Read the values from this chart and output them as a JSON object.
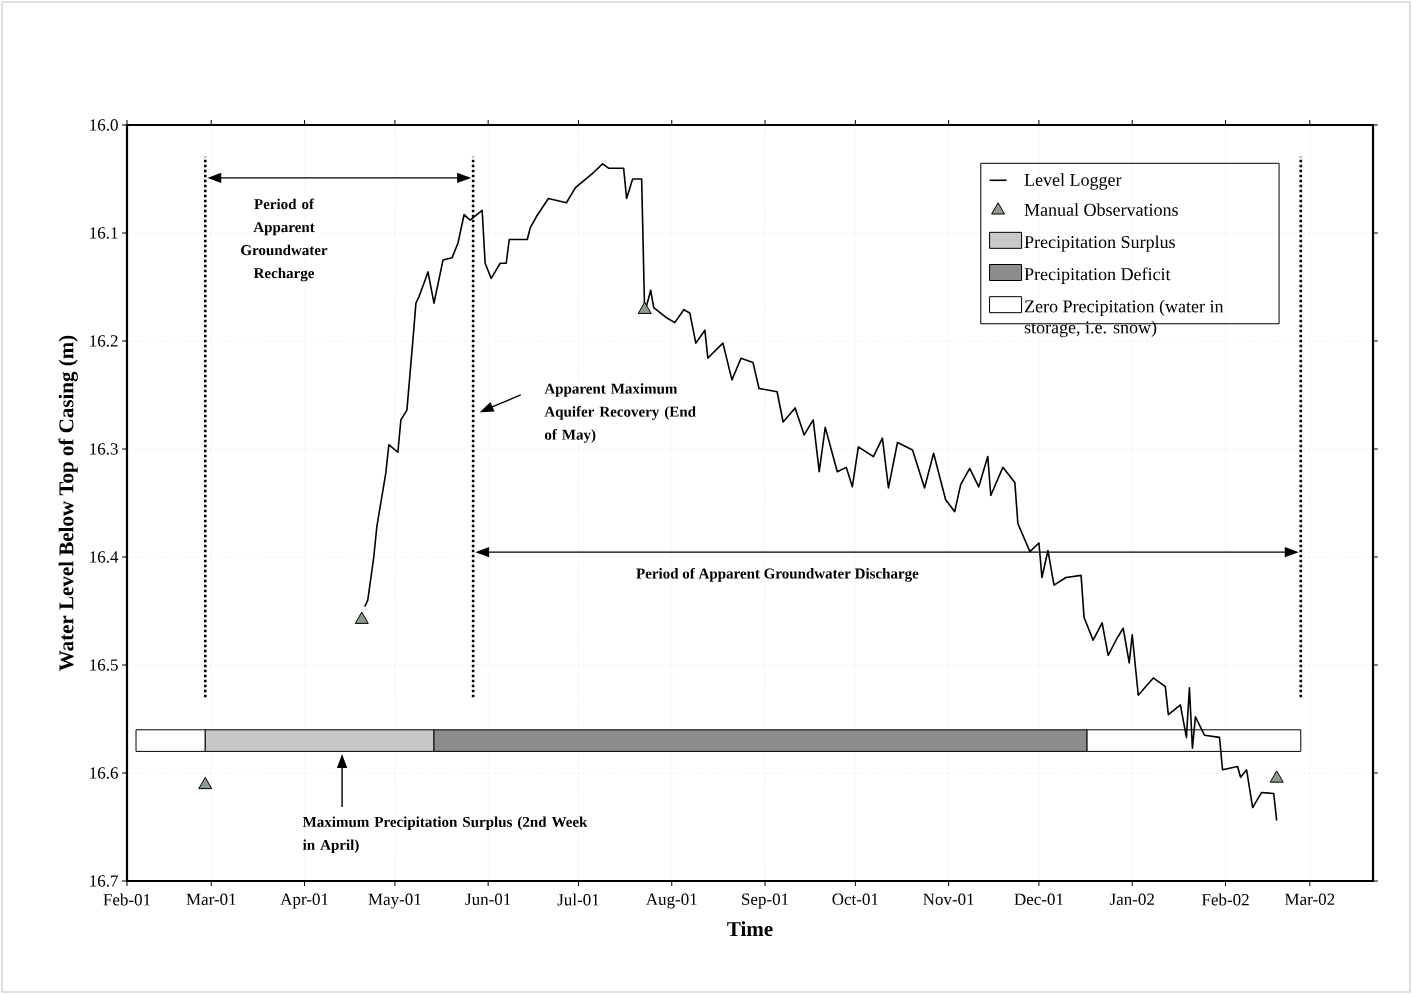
{
  "chart_data": {
    "type": "line",
    "xlabel": "Time",
    "ylabel": "Water Level Below Top of Casing (m)",
    "xlim": [
      "2001-02-01",
      "2002-03-22"
    ],
    "ylim": [
      16.7,
      16.0
    ],
    "xticks": [
      {
        "value": "2001-02-01",
        "label": "Feb-01"
      },
      {
        "value": "2001-03-01",
        "label": "Mar-01"
      },
      {
        "value": "2001-04-01",
        "label": "Apr-01"
      },
      {
        "value": "2001-05-01",
        "label": "May-01"
      },
      {
        "value": "2001-06-01",
        "label": "Jun-01"
      },
      {
        "value": "2001-07-01",
        "label": "Jul-01"
      },
      {
        "value": "2001-08-01",
        "label": "Aug-01"
      },
      {
        "value": "2001-09-01",
        "label": "Sep-01"
      },
      {
        "value": "2001-10-01",
        "label": "Oct-01"
      },
      {
        "value": "2001-11-01",
        "label": "Nov-01"
      },
      {
        "value": "2001-12-01",
        "label": "Dec-01"
      },
      {
        "value": "2002-01-01",
        "label": "Jan-02"
      },
      {
        "value": "2002-02-01",
        "label": "Feb-02"
      },
      {
        "value": "2002-03-01",
        "label": "Mar-02"
      }
    ],
    "yticks": [
      {
        "value": 16.0,
        "label": "16.0"
      },
      16.1,
      16.2,
      16.3,
      16.4,
      16.5,
      16.6,
      16.7
    ],
    "grid": true,
    "legend": "top right",
    "series": [
      {
        "name": "Level Logger",
        "color": "#000000",
        "x": [
          "2001-04-21",
          "2001-04-22",
          "2001-04-24",
          "2001-04-25",
          "2001-04-28",
          "2001-04-29",
          "2001-05-02",
          "2001-05-03",
          "2001-05-05",
          "2001-05-07",
          "2001-05-08",
          "2001-05-09",
          "2001-05-11",
          "2001-05-12",
          "2001-05-14",
          "2001-05-17",
          "2001-05-20",
          "2001-05-22",
          "2001-05-24",
          "2001-05-26",
          "2001-05-30",
          "2001-05-31",
          "2001-06-02",
          "2001-06-05",
          "2001-06-07",
          "2001-06-08",
          "2001-06-14",
          "2001-06-15",
          "2001-06-17",
          "2001-06-21",
          "2001-06-27",
          "2001-06-30",
          "2001-07-06",
          "2001-07-09",
          "2001-07-11",
          "2001-07-16",
          "2001-07-17",
          "2001-07-19",
          "2001-07-22",
          "2001-07-23",
          "2001-07-25",
          "2001-07-26",
          "2001-07-30",
          "2001-08-02",
          "2001-08-05",
          "2001-08-07",
          "2001-08-09",
          "2001-08-12",
          "2001-08-13",
          "2001-08-14",
          "2001-08-18",
          "2001-08-21",
          "2001-08-24",
          "2001-08-28",
          "2001-08-30",
          "2001-09-05",
          "2001-09-07",
          "2001-09-11",
          "2001-09-14",
          "2001-09-17",
          "2001-09-19",
          "2001-09-21",
          "2001-09-25",
          "2001-09-28",
          "2001-09-30",
          "2001-10-02",
          "2001-10-07",
          "2001-10-10",
          "2001-10-12",
          "2001-10-15",
          "2001-10-20",
          "2001-10-24",
          "2001-10-27",
          "2001-10-31",
          "2001-11-03",
          "2001-11-05",
          "2001-11-08",
          "2001-11-11",
          "2001-11-14",
          "2001-11-15",
          "2001-11-19",
          "2001-11-23",
          "2001-11-24",
          "2001-11-28",
          "2001-12-01",
          "2001-12-02",
          "2001-12-04",
          "2001-12-06",
          "2001-12-10",
          "2001-12-15",
          "2001-12-16",
          "2001-12-19",
          "2001-12-22",
          "2001-12-24",
          "2001-12-27",
          "2001-12-29",
          "2001-12-31",
          "2002-01-01",
          "2002-01-03",
          "2002-01-08",
          "2002-01-12",
          "2002-01-13",
          "2002-01-17",
          "2002-01-19",
          "2002-01-20",
          "2002-01-21",
          "2002-01-22",
          "2002-01-25",
          "2002-01-30",
          "2002-01-31",
          "2002-02-05",
          "2002-02-06",
          "2002-02-08",
          "2002-02-10",
          "2002-02-13",
          "2002-02-17",
          "2002-02-18"
        ],
        "values": [
          16.446,
          16.44,
          16.4,
          16.372,
          16.322,
          16.296,
          16.303,
          16.273,
          16.264,
          16.199,
          16.165,
          16.159,
          16.144,
          16.136,
          16.165,
          16.125,
          16.123,
          16.109,
          16.083,
          16.088,
          16.079,
          16.128,
          16.142,
          16.128,
          16.128,
          16.106,
          16.106,
          16.095,
          16.085,
          16.068,
          16.072,
          16.058,
          16.044,
          16.036,
          16.04,
          16.04,
          16.068,
          16.05,
          16.05,
          16.174,
          16.153,
          16.169,
          16.178,
          16.183,
          16.171,
          16.174,
          16.202,
          16.19,
          16.216,
          16.213,
          16.202,
          16.236,
          16.216,
          16.22,
          16.244,
          16.247,
          16.275,
          16.262,
          16.287,
          16.273,
          16.321,
          16.28,
          16.321,
          16.317,
          16.335,
          16.298,
          16.307,
          16.29,
          16.336,
          16.294,
          16.301,
          16.336,
          16.304,
          16.347,
          16.358,
          16.333,
          16.318,
          16.335,
          16.307,
          16.343,
          16.317,
          16.331,
          16.369,
          16.395,
          16.387,
          16.419,
          16.394,
          16.426,
          16.419,
          16.417,
          16.456,
          16.477,
          16.461,
          16.491,
          16.475,
          16.466,
          16.498,
          16.472,
          16.528,
          16.512,
          16.52,
          16.546,
          16.537,
          16.567,
          16.521,
          16.577,
          16.548,
          16.565,
          16.567,
          16.597,
          16.594,
          16.604,
          16.597,
          16.632,
          16.618,
          16.619,
          16.644
        ]
      },
      {
        "name": "Manual Observations",
        "type": "scatter",
        "color": "#8c9c8c",
        "marker": "triangle",
        "x": [
          "2001-02-27",
          "2001-04-20",
          "2001-07-23",
          "2002-02-18"
        ],
        "values": [
          16.611,
          16.458,
          16.171,
          16.605
        ]
      },
      {
        "type": "area",
        "color": "#ffffff",
        "x": [
          "2001-02-04",
          "2001-02-04",
          "2001-02-27",
          "2001-02-27"
        ],
        "values": [
          16.58,
          16.56,
          16.56,
          16.58
        ]
      },
      {
        "name": "Precipitation Surplus",
        "type": "area",
        "color": "#c8c8c8",
        "x": [
          "2001-02-27",
          "2001-02-27",
          "2001-05-14",
          "2001-05-14"
        ],
        "values": [
          16.58,
          16.56,
          16.56,
          16.58
        ]
      },
      {
        "name": "Precipitation Deficit",
        "type": "area",
        "color": "#8c8c8c",
        "x": [
          "2001-05-14",
          "2001-05-14",
          "2001-12-17",
          "2001-12-17"
        ],
        "values": [
          16.58,
          16.56,
          16.56,
          16.58
        ]
      },
      {
        "name": "Zero Precipitation (water in storage, i.e. snow)",
        "type": "area",
        "color": "#ffffff",
        "x": [
          "2001-12-17",
          "2001-12-17",
          "2002-02-26",
          "2002-02-26"
        ],
        "values": [
          16.58,
          16.56,
          16.56,
          16.58
        ]
      }
    ],
    "ref_lines": [
      {
        "axis": "x",
        "value": "2001-02-27",
        "color": "#000000",
        "line_style": "dotted"
      },
      {
        "axis": "x",
        "value": "2001-05-27",
        "color": "#000000",
        "line_style": "dotted"
      },
      {
        "axis": "x",
        "value": "2002-02-26",
        "color": "#000000",
        "line_style": "dotted"
      }
    ],
    "annotations": [
      "Period of Apparent Groundwater Recharge",
      "Apparent Maximum Aquifer Recovery (End of May)",
      "Period of Apparent Groundwater Discharge",
      "Maximum Precipitation Surplus (2nd Week in April)"
    ]
  }
}
